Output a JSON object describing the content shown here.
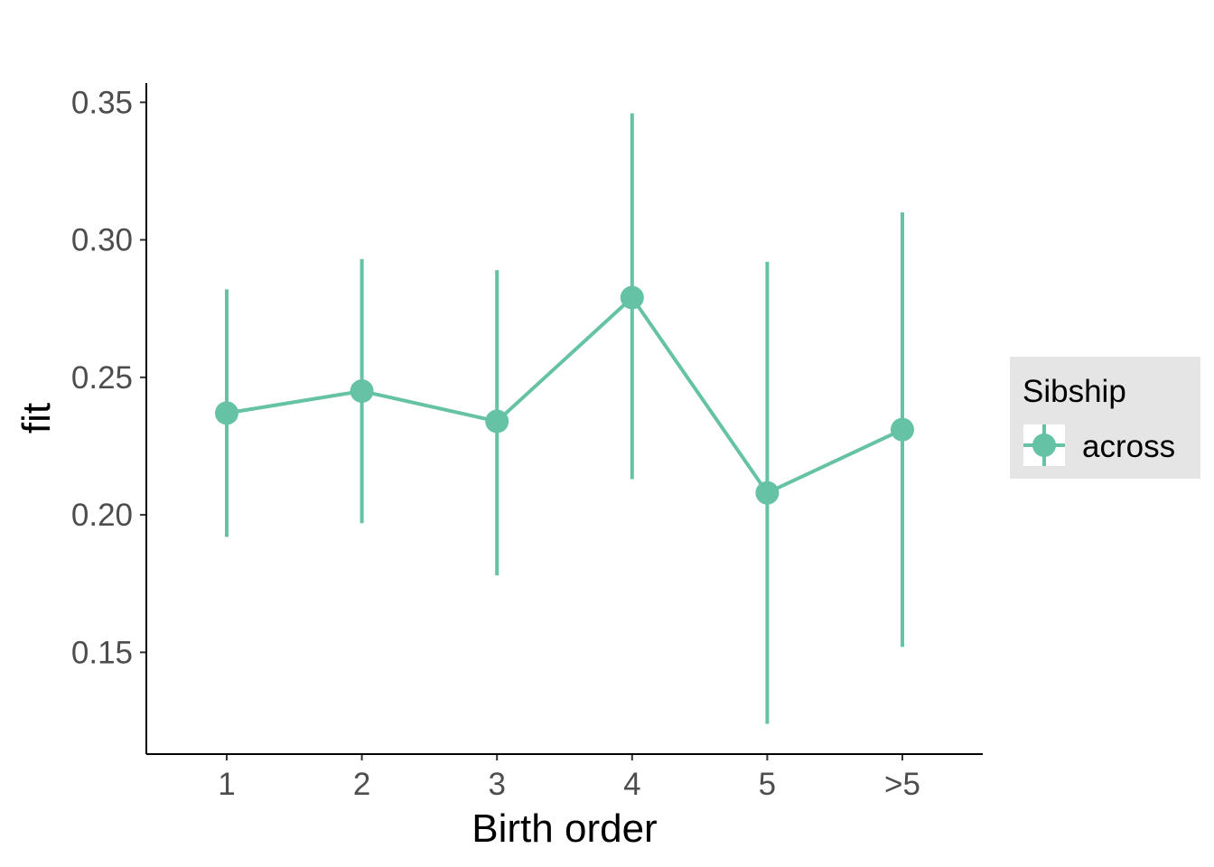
{
  "chart_data": {
    "type": "line",
    "xlabel": "Birth order",
    "ylabel": "fit",
    "categories": [
      "1",
      "2",
      "3",
      "4",
      "5",
      ">5"
    ],
    "ylim": [
      0.113,
      0.357
    ],
    "yticks": [
      "0.15",
      "0.20",
      "0.25",
      "0.30",
      "0.35"
    ],
    "grid": false,
    "legend": {
      "title": "Sibship",
      "position": "right"
    },
    "series": [
      {
        "name": "across",
        "color": "#66c2a5",
        "values": [
          0.237,
          0.245,
          0.234,
          0.279,
          0.208,
          0.231
        ],
        "lower": [
          0.192,
          0.197,
          0.178,
          0.213,
          0.124,
          0.152
        ],
        "upper": [
          0.282,
          0.293,
          0.289,
          0.346,
          0.292,
          0.31
        ]
      }
    ]
  }
}
